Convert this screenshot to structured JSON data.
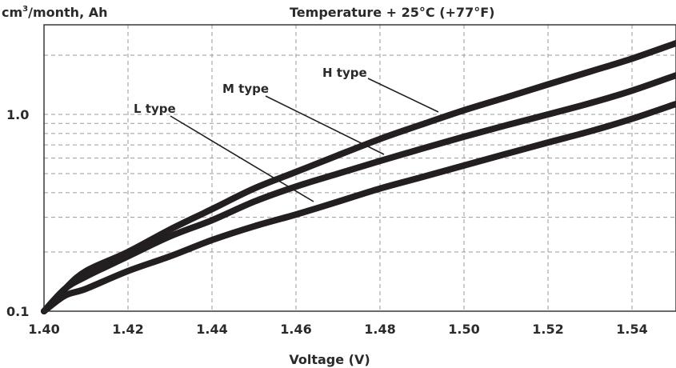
{
  "chart_data": {
    "type": "line",
    "title": "Temperature + 25°C (+77°F)",
    "xlabel": "Voltage (V)",
    "ylabel": "cm³/month, Ah",
    "ylabel_main": "cm",
    "ylabel_sup": "3",
    "ylabel_rest": "/month, Ah",
    "y_scale": "log",
    "xlim": [
      1.4,
      1.551
    ],
    "ylim": [
      0.1,
      2.6
    ],
    "x_ticks": [
      "1.40",
      "1.42",
      "1.44",
      "1.46",
      "1.48",
      "1.50",
      "1.52",
      "1.54"
    ],
    "y_ticks": [
      "0.1",
      "1.0"
    ],
    "grid": true,
    "series": [
      {
        "name": "H type",
        "x": [
          1.4,
          1.405,
          1.41,
          1.42,
          1.43,
          1.44,
          1.45,
          1.46,
          1.47,
          1.48,
          1.49,
          1.5,
          1.51,
          1.52,
          1.53,
          1.54,
          1.551
        ],
        "y": [
          0.1,
          0.13,
          0.16,
          0.2,
          0.26,
          0.33,
          0.42,
          0.51,
          0.62,
          0.75,
          0.89,
          1.05,
          1.22,
          1.42,
          1.65,
          1.92,
          2.3
        ]
      },
      {
        "name": "M type",
        "x": [
          1.4,
          1.405,
          1.41,
          1.42,
          1.43,
          1.44,
          1.45,
          1.46,
          1.47,
          1.48,
          1.49,
          1.5,
          1.51,
          1.52,
          1.53,
          1.54,
          1.551
        ],
        "y": [
          0.1,
          0.13,
          0.15,
          0.19,
          0.24,
          0.29,
          0.36,
          0.43,
          0.5,
          0.58,
          0.67,
          0.77,
          0.88,
          1.0,
          1.14,
          1.32,
          1.58
        ]
      },
      {
        "name": "L type",
        "x": [
          1.4,
          1.405,
          1.41,
          1.42,
          1.43,
          1.44,
          1.45,
          1.46,
          1.47,
          1.48,
          1.49,
          1.5,
          1.51,
          1.52,
          1.53,
          1.54,
          1.551
        ],
        "y": [
          0.1,
          0.12,
          0.13,
          0.16,
          0.19,
          0.23,
          0.27,
          0.31,
          0.36,
          0.42,
          0.48,
          0.55,
          0.63,
          0.72,
          0.82,
          0.95,
          1.13
        ]
      }
    ]
  }
}
